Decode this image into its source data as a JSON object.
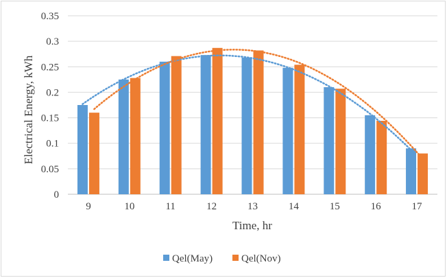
{
  "chart_data": {
    "type": "bar",
    "title": "",
    "xlabel": "Time, hr",
    "ylabel": "Electrical Energy, kWh",
    "categories": [
      "9",
      "10",
      "11",
      "12",
      "13",
      "14",
      "15",
      "16",
      "17"
    ],
    "ylim": [
      0,
      0.35
    ],
    "yticks": [
      "0",
      "0.05",
      "0.1",
      "0.15",
      "0.2",
      "0.25",
      "0.3",
      "0.35"
    ],
    "grid": true,
    "legend_position": "bottom",
    "trendline": "polynomial, dotted",
    "series": [
      {
        "name": "Qel(May)",
        "color": "#5b9bd5",
        "values": [
          0.175,
          0.225,
          0.26,
          0.273,
          0.268,
          0.248,
          0.21,
          0.155,
          0.09
        ]
      },
      {
        "name": "Qel(Nov)",
        "color": "#ed7d31",
        "values": [
          0.16,
          0.228,
          0.271,
          0.287,
          0.282,
          0.254,
          0.207,
          0.144,
          0.08
        ]
      }
    ]
  }
}
